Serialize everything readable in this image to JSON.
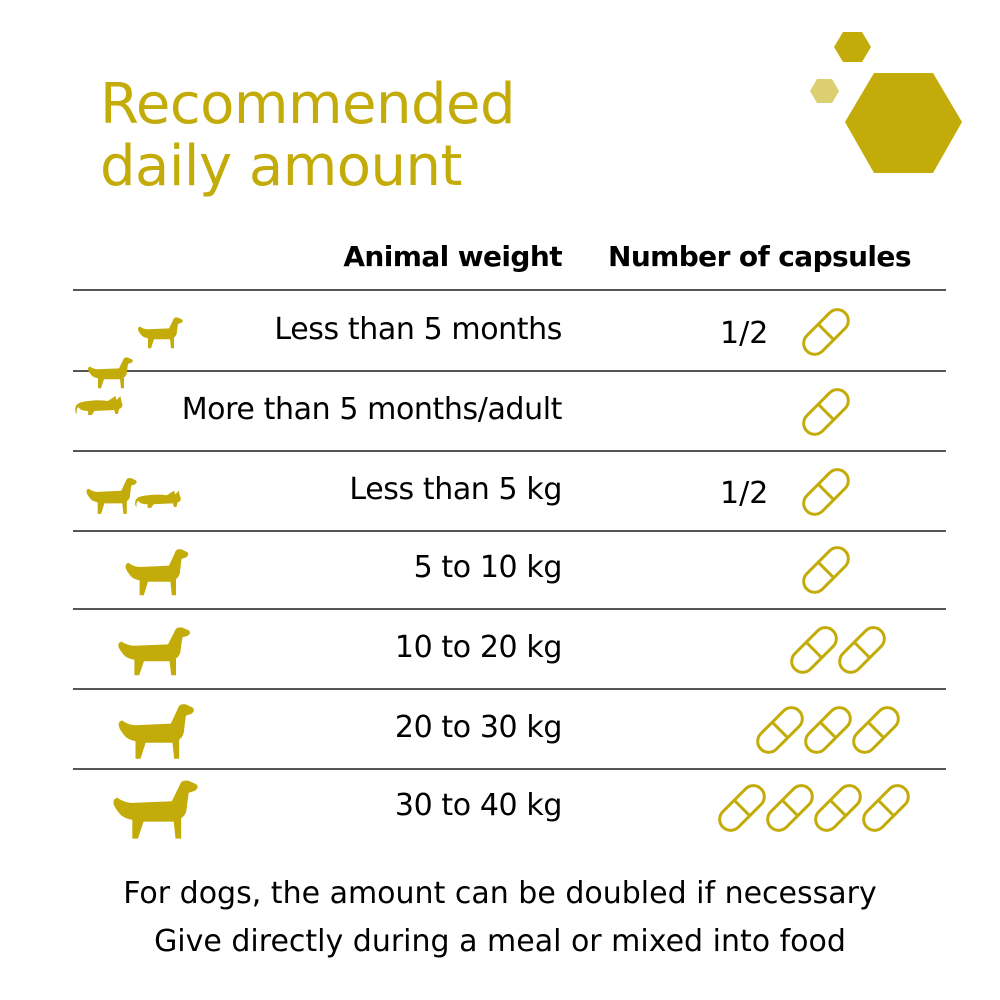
{
  "title": {
    "line1": "Recommended",
    "line2": "daily amount"
  },
  "colors": {
    "accent": "#c3ac0a",
    "accent_light": "#dccf72",
    "rule": "#555555",
    "text": "#000000"
  },
  "table": {
    "headers": {
      "weight": "Animal weight",
      "capsules": "Number of capsules"
    },
    "rows": [
      {
        "weight": "Less than 5 months",
        "fraction": "1/2",
        "capsules": 1,
        "icon": "puppy-icon"
      },
      {
        "weight": "More than 5 months/adult",
        "fraction": "",
        "capsules": 1,
        "icon": "dog-and-cat-icon"
      },
      {
        "weight": "Less than 5 kg",
        "fraction": "1/2",
        "capsules": 1,
        "icon": "small-dog-and-cat-icon"
      },
      {
        "weight": "5 to 10 kg",
        "fraction": "",
        "capsules": 1,
        "icon": "medium-dog-icon"
      },
      {
        "weight": "10 to 20 kg",
        "fraction": "",
        "capsules": 2,
        "icon": "labrador-icon"
      },
      {
        "weight": "20 to 30 kg",
        "fraction": "",
        "capsules": 3,
        "icon": "large-dog-icon"
      },
      {
        "weight": "30 to 40 kg",
        "fraction": "",
        "capsules": 4,
        "icon": "giant-dog-icon"
      }
    ]
  },
  "footer": {
    "line1": "For dogs, the amount can be doubled if necessary",
    "line2": "Give directly during a meal or mixed into food"
  }
}
